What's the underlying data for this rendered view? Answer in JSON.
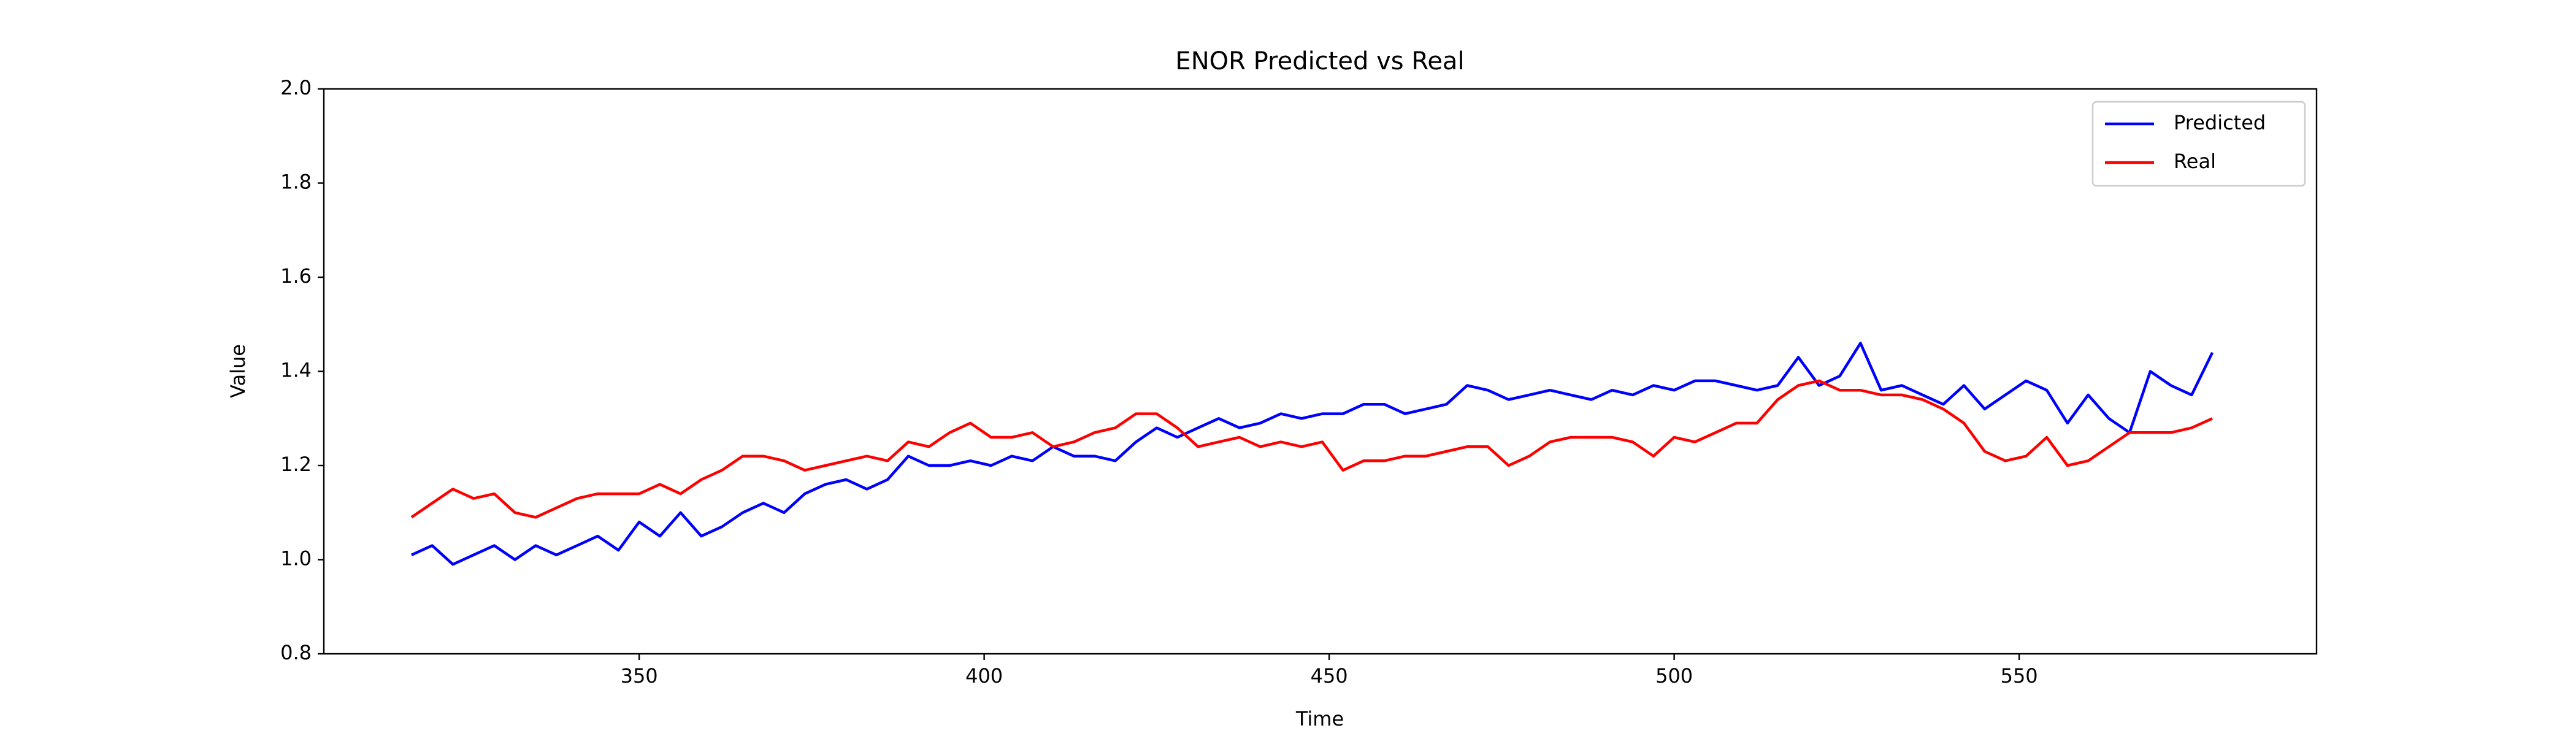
{
  "chart_data": {
    "type": "line",
    "title": "ENOR Predicted vs Real",
    "xlabel": "Time",
    "ylabel": "Value",
    "x": [
      317,
      320,
      323,
      326,
      329,
      332,
      335,
      338,
      341,
      344,
      347,
      350,
      353,
      356,
      359,
      362,
      365,
      368,
      371,
      374,
      377,
      380,
      383,
      386,
      389,
      392,
      395,
      398,
      401,
      404,
      407,
      410,
      413,
      416,
      419,
      422,
      425,
      428,
      431,
      434,
      437,
      440,
      443,
      446,
      449,
      452,
      455,
      458,
      461,
      464,
      467,
      470,
      473,
      476,
      479,
      482,
      485,
      488,
      491,
      494,
      497,
      500,
      503,
      506,
      509,
      512,
      515,
      518,
      521,
      524,
      527,
      530,
      533,
      536,
      539,
      542,
      545,
      548,
      551,
      554,
      557,
      560,
      563,
      566,
      569,
      572,
      575,
      578
    ],
    "series": [
      {
        "name": "Predicted",
        "color": "#0000ff",
        "values": [
          1.01,
          1.03,
          0.99,
          1.01,
          1.03,
          1.0,
          1.03,
          1.01,
          1.03,
          1.05,
          1.02,
          1.08,
          1.05,
          1.1,
          1.05,
          1.07,
          1.1,
          1.12,
          1.1,
          1.14,
          1.16,
          1.17,
          1.15,
          1.17,
          1.22,
          1.2,
          1.2,
          1.21,
          1.2,
          1.22,
          1.21,
          1.24,
          1.22,
          1.22,
          1.21,
          1.25,
          1.28,
          1.26,
          1.28,
          1.3,
          1.28,
          1.29,
          1.31,
          1.3,
          1.31,
          1.31,
          1.33,
          1.33,
          1.31,
          1.32,
          1.33,
          1.37,
          1.36,
          1.34,
          1.35,
          1.36,
          1.35,
          1.34,
          1.36,
          1.35,
          1.37,
          1.36,
          1.38,
          1.38,
          1.37,
          1.36,
          1.37,
          1.43,
          1.37,
          1.39,
          1.46,
          1.36,
          1.37,
          1.35,
          1.33,
          1.37,
          1.32,
          1.35,
          1.38,
          1.36,
          1.29,
          1.35,
          1.3,
          1.27,
          1.4,
          1.37,
          1.35,
          1.44
        ]
      },
      {
        "name": "Real",
        "color": "#ff0000",
        "values": [
          1.09,
          1.12,
          1.15,
          1.13,
          1.14,
          1.1,
          1.09,
          1.11,
          1.13,
          1.14,
          1.14,
          1.14,
          1.16,
          1.14,
          1.17,
          1.19,
          1.22,
          1.22,
          1.21,
          1.19,
          1.2,
          1.21,
          1.22,
          1.21,
          1.25,
          1.24,
          1.27,
          1.29,
          1.26,
          1.26,
          1.27,
          1.24,
          1.25,
          1.27,
          1.28,
          1.31,
          1.31,
          1.28,
          1.24,
          1.25,
          1.26,
          1.24,
          1.25,
          1.24,
          1.25,
          1.19,
          1.21,
          1.21,
          1.22,
          1.22,
          1.23,
          1.24,
          1.24,
          1.2,
          1.22,
          1.25,
          1.26,
          1.26,
          1.26,
          1.25,
          1.22,
          1.26,
          1.25,
          1.27,
          1.29,
          1.29,
          1.34,
          1.37,
          1.38,
          1.36,
          1.36,
          1.35,
          1.35,
          1.34,
          1.32,
          1.29,
          1.23,
          1.21,
          1.22,
          1.26,
          1.2,
          1.21,
          1.24,
          1.27,
          1.27,
          1.27,
          1.28,
          1.3
        ]
      }
    ],
    "xlim": [
      304.3,
      593.1
    ],
    "xticks": [
      350,
      400,
      450,
      500,
      550
    ],
    "ylim": [
      0.8,
      2.0
    ],
    "yticks": [
      0.8,
      {
        "value": 1,
        "label": "1.0"
      },
      1.2,
      1.4,
      1.6,
      1.8,
      {
        "value": 2,
        "label": "2.0"
      }
    ],
    "legend": "upper right"
  }
}
